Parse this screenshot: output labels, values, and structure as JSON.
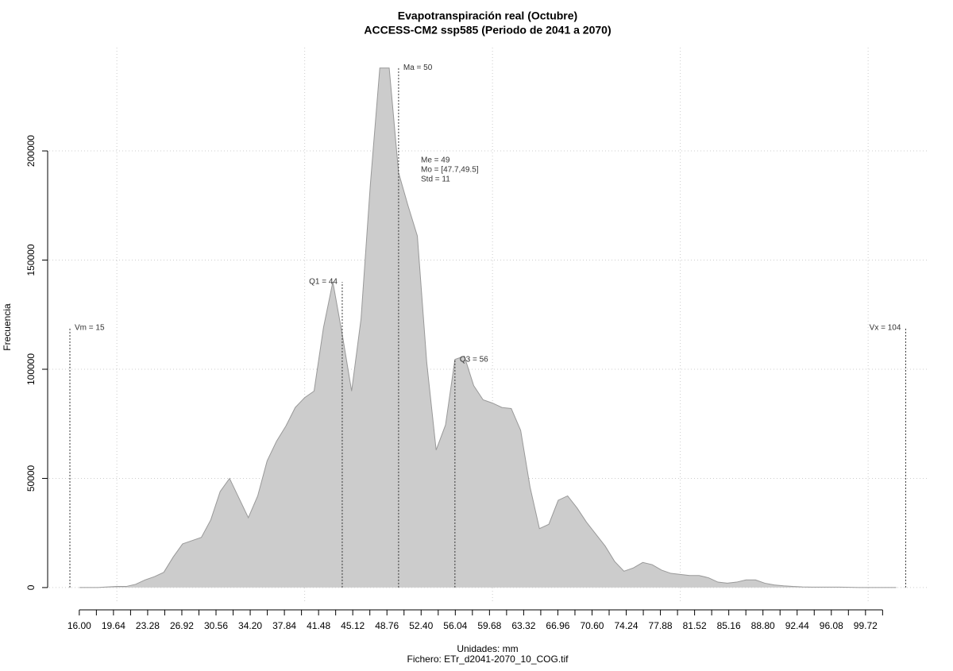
{
  "chart_data": {
    "type": "area",
    "title": "Evapotranspiración real (Octubre)",
    "subtitle": "ACCESS-CM2 ssp585 (Periodo de 2041 a 2070)",
    "x_label": "Unidades: mm",
    "caption": "Fichero: ETr_d2041-2070_10_COG.tif",
    "y_label": "Frecuencia",
    "x": [
      16,
      17,
      18,
      19,
      20,
      21,
      22,
      23,
      24,
      25,
      26,
      27,
      28,
      29,
      30,
      31,
      32,
      33,
      34,
      35,
      36,
      37,
      38,
      39,
      40,
      41,
      42,
      43,
      44,
      45,
      46,
      47,
      48,
      49,
      50,
      51,
      52,
      53,
      54,
      55,
      56,
      57,
      58,
      59,
      60,
      61,
      62,
      63,
      64,
      65,
      66,
      67,
      68,
      69,
      70,
      71,
      72,
      73,
      74,
      75,
      76,
      77,
      78,
      79,
      80,
      81,
      82,
      83,
      84,
      85,
      86,
      87,
      88,
      89,
      90,
      91,
      92,
      93,
      94,
      95,
      96,
      97,
      98,
      99,
      100,
      101,
      102,
      103
    ],
    "values": [
      0,
      0,
      0,
      300,
      500,
      500,
      1500,
      3500,
      5000,
      7000,
      14000,
      20000,
      21500,
      23000,
      31000,
      44000,
      50000,
      41000,
      32000,
      42000,
      58000,
      67000,
      74000,
      82500,
      87000,
      90000,
      119000,
      140000,
      116000,
      90000,
      123000,
      185000,
      238000,
      238000,
      190000,
      175000,
      161000,
      103000,
      63000,
      74500,
      104500,
      106000,
      92500,
      86000,
      84500,
      82500,
      82000,
      72000,
      46000,
      27000,
      29000,
      40000,
      42000,
      36500,
      30000,
      24500,
      19000,
      12000,
      7500,
      9000,
      11500,
      10500,
      8000,
      6500,
      6000,
      5500,
      5500,
      4500,
      2500,
      2000,
      2500,
      3500,
      3500,
      2000,
      1200,
      800,
      500,
      300,
      200,
      200,
      200,
      200,
      100,
      0,
      0,
      0,
      0,
      0
    ],
    "color": "#cccccc",
    "line_color": "#999999",
    "xlim": [
      12.8,
      106.5
    ],
    "ylim": [
      -7300,
      247300
    ],
    "xticks": [
      {
        "value": 16,
        "label": "16.00"
      },
      {
        "value": 19.64,
        "label": "19.64"
      },
      {
        "value": 23.28,
        "label": "23.28"
      },
      {
        "value": 26.92,
        "label": "26.92"
      },
      {
        "value": 30.56,
        "label": "30.56"
      },
      {
        "value": 34.2,
        "label": "34.20"
      },
      {
        "value": 37.84,
        "label": "37.84"
      },
      {
        "value": 41.48,
        "label": "41.48"
      },
      {
        "value": 45.12,
        "label": "45.12"
      },
      {
        "value": 48.76,
        "label": "48.76"
      },
      {
        "value": 52.4,
        "label": "52.40"
      },
      {
        "value": 56.04,
        "label": "56.04"
      },
      {
        "value": 59.68,
        "label": "59.68"
      },
      {
        "value": 63.32,
        "label": "63.32"
      },
      {
        "value": 66.96,
        "label": "66.96"
      },
      {
        "value": 70.6,
        "label": "70.60"
      },
      {
        "value": 74.24,
        "label": "74.24"
      },
      {
        "value": 77.88,
        "label": "77.88"
      },
      {
        "value": 81.52,
        "label": "81.52"
      },
      {
        "value": 85.16,
        "label": "85.16"
      },
      {
        "value": 88.8,
        "label": "88.80"
      },
      {
        "value": 92.44,
        "label": "92.44"
      },
      {
        "value": 96.08,
        "label": "96.08"
      },
      {
        "value": 99.72,
        "label": "99.72"
      }
    ],
    "xminor_ticks": [
      17.82,
      21.46,
      25.1,
      28.74,
      32.38,
      36.02,
      39.66,
      43.3,
      46.94,
      50.58,
      54.22,
      57.86,
      61.5,
      65.14,
      68.78,
      72.42,
      76.06,
      79.7,
      83.34,
      86.98,
      90.62,
      94.26,
      97.9,
      101.54
    ],
    "xgrid": [
      20,
      40,
      60,
      80,
      100
    ],
    "yticks": [
      0,
      50000,
      100000,
      150000,
      200000
    ],
    "grid": true,
    "markers": [
      {
        "label": "Vm = 15",
        "x": 15,
        "y": 119000,
        "side": "right"
      },
      {
        "label": "Q1 = 44",
        "x": 44,
        "y": 140000,
        "side": "left"
      },
      {
        "label": "Ma = 50",
        "x": 50,
        "y": 238000,
        "side": "right"
      },
      {
        "label": "Q3 = 56",
        "x": 56,
        "y": 104500,
        "side": "right"
      },
      {
        "label": "Vx = 104",
        "x": 104,
        "y": 119000,
        "side": "left"
      }
    ],
    "stats": [
      "Me = 49",
      "Mo = [47.7,49.5]",
      "Std = 11"
    ]
  }
}
